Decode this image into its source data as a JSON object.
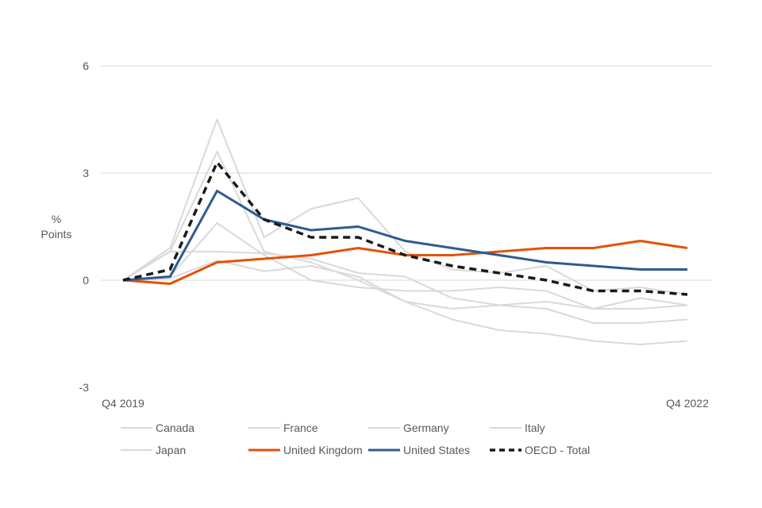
{
  "chart_data": {
    "type": "line",
    "title": "",
    "ylabel": [
      "%",
      "Points"
    ],
    "xlabel": "",
    "ylim": [
      -3,
      6
    ],
    "yticks": [
      -3,
      0,
      3,
      6
    ],
    "x": [
      0,
      1,
      2,
      3,
      4,
      5,
      6,
      7,
      8,
      9,
      10,
      11,
      12
    ],
    "x_tick_labels": [
      {
        "index": 0,
        "label": "Q4 2019"
      },
      {
        "index": 12,
        "label": "Q4 2022"
      }
    ],
    "grid": true,
    "legend_position": "bottom",
    "series": [
      {
        "name": "Canada",
        "color": "#d9d9d9",
        "style": "solid",
        "values": [
          0,
          0.9,
          4.5,
          1.2,
          2.0,
          2.3,
          0.8,
          0.3,
          0.2,
          0.4,
          -0.3,
          -0.2,
          -0.4
        ]
      },
      {
        "name": "France",
        "color": "#d9d9d9",
        "style": "solid",
        "values": [
          0,
          0.8,
          3.6,
          0.8,
          0.5,
          0.0,
          -0.6,
          -0.8,
          -0.7,
          -0.6,
          -0.8,
          -0.8,
          -0.7
        ]
      },
      {
        "name": "Germany",
        "color": "#d9d9d9",
        "style": "solid",
        "values": [
          0,
          0.1,
          1.6,
          0.7,
          0.0,
          -0.2,
          -0.3,
          -0.3,
          -0.2,
          -0.3,
          -0.8,
          -0.5,
          -0.7
        ]
      },
      {
        "name": "Italy",
        "color": "#d9d9d9",
        "style": "solid",
        "values": [
          0,
          0.8,
          0.8,
          0.75,
          0.6,
          0.2,
          0.1,
          -0.5,
          -0.7,
          -0.8,
          -1.2,
          -1.2,
          -1.1
        ]
      },
      {
        "name": "Japan",
        "color": "#d9d9d9",
        "style": "solid",
        "values": [
          0,
          0.05,
          0.55,
          0.25,
          0.4,
          0.1,
          -0.6,
          -1.1,
          -1.4,
          -1.5,
          -1.7,
          -1.8,
          -1.7
        ]
      },
      {
        "name": "United Kingdom",
        "color": "#e35205",
        "style": "solid",
        "values": [
          0,
          -0.1,
          0.5,
          0.6,
          0.7,
          0.9,
          0.7,
          0.7,
          0.8,
          0.9,
          0.9,
          1.1,
          0.9
        ]
      },
      {
        "name": "United States",
        "color": "#2f5b8f",
        "style": "solid",
        "values": [
          0,
          0.1,
          2.5,
          1.7,
          1.4,
          1.5,
          1.1,
          0.9,
          0.7,
          0.5,
          0.4,
          0.3,
          0.3
        ]
      },
      {
        "name": "OECD - Total",
        "color": "#1a1a1a",
        "style": "dashed",
        "values": [
          0,
          0.3,
          3.3,
          1.7,
          1.2,
          1.2,
          0.7,
          0.4,
          0.2,
          0.0,
          -0.3,
          -0.3,
          -0.4
        ]
      }
    ]
  }
}
